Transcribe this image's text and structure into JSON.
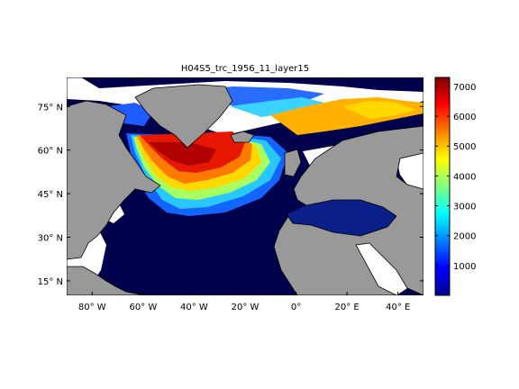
{
  "title": "H04S5_trc_1956_11_layer15",
  "colors": {
    "land": "#999999",
    "no_data": "#ffffff",
    "coast": "#000000",
    "low": "#00004c",
    "mid_low": "#0064ff",
    "mid": "#ffff00",
    "mid_high": "#ff5000",
    "high": "#800000"
  },
  "map": {
    "lon_range": [
      -90,
      50
    ],
    "lat_range": [
      10,
      85
    ],
    "lon_ticks": [
      {
        "value": -80,
        "label": "80° W"
      },
      {
        "value": -60,
        "label": "60° W"
      },
      {
        "value": -40,
        "label": "40° W"
      },
      {
        "value": -20,
        "label": "20° W"
      },
      {
        "value": 0,
        "label": "0°"
      },
      {
        "value": 20,
        "label": "20° E"
      },
      {
        "value": 40,
        "label": "40° E"
      }
    ],
    "lat_ticks": [
      {
        "value": 75,
        "label": "75° N"
      },
      {
        "value": 60,
        "label": "60° N"
      },
      {
        "value": 45,
        "label": "45° N"
      },
      {
        "value": 30,
        "label": "30° N"
      },
      {
        "value": 15,
        "label": "15° N"
      }
    ]
  },
  "colorbar": {
    "range": [
      0,
      7300
    ],
    "ticks": [
      {
        "value": 1000,
        "label": "1000"
      },
      {
        "value": 2000,
        "label": "2000"
      },
      {
        "value": 3000,
        "label": "3000"
      },
      {
        "value": 4000,
        "label": "4000"
      },
      {
        "value": 5000,
        "label": "5000"
      },
      {
        "value": 6000,
        "label": "6000"
      },
      {
        "value": 7000,
        "label": "7000"
      }
    ]
  }
}
